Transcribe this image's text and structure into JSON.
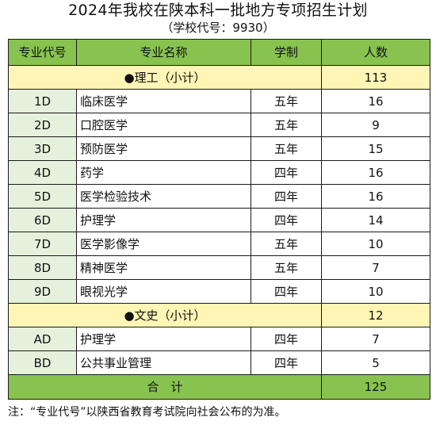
{
  "title": "2024年我校在陕本科一批地方专项招生计划",
  "subtitle": "（学校代号：9930）",
  "table": {
    "headers": [
      "专业代号",
      "专业名称",
      "学制",
      "人数"
    ],
    "science_subtotal": {
      "label": "●理工（小计）",
      "count": "113"
    },
    "science_rows": [
      {
        "code": "1D",
        "name": "临床医学",
        "duration": "五年",
        "count": "16"
      },
      {
        "code": "2D",
        "name": "口腔医学",
        "duration": "五年",
        "count": "9"
      },
      {
        "code": "3D",
        "name": "预防医学",
        "duration": "五年",
        "count": "15"
      },
      {
        "code": "4D",
        "name": "药学",
        "duration": "四年",
        "count": "16"
      },
      {
        "code": "5D",
        "name": "医学检验技术",
        "duration": "四年",
        "count": "16"
      },
      {
        "code": "6D",
        "name": "护理学",
        "duration": "四年",
        "count": "14"
      },
      {
        "code": "7D",
        "name": "医学影像学",
        "duration": "五年",
        "count": "10"
      },
      {
        "code": "8D",
        "name": "精神医学",
        "duration": "五年",
        "count": "7"
      },
      {
        "code": "9D",
        "name": "眼视光学",
        "duration": "四年",
        "count": "10"
      }
    ],
    "arts_subtotal": {
      "label": "●文史（小计）",
      "count": "12"
    },
    "arts_rows": [
      {
        "code": "AD",
        "name": "护理学",
        "duration": "四年",
        "count": "7"
      },
      {
        "code": "BD",
        "name": "公共事业管理",
        "duration": "四年",
        "count": "5"
      }
    ],
    "total": {
      "label": "合　计",
      "count": "125"
    }
  },
  "footnote": "注：“专业代号”以陕西省教育考试院向社会公布的为准。",
  "colors": {
    "header_fill": "#88c34f",
    "subtotal_fill": "#fff5b4",
    "code_fill": "#e6f1dd",
    "total_fill": "#88c34f"
  }
}
